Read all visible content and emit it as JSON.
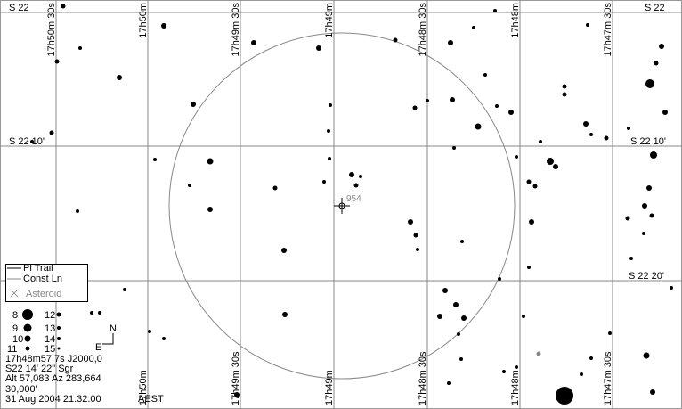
{
  "ra_top": [
    "17h50m 30s",
    "17h50m",
    "17h49m 30s",
    "17h49m",
    "17h48m 30s",
    "17h48m",
    "17h47m 30s"
  ],
  "ra_bottom": [
    "17h50m",
    "17h49m 30s",
    "17h49m",
    "17h48m 30s",
    "17h48m",
    "17h47m 30s"
  ],
  "dec_left": [
    "S 22",
    "S 22 10'"
  ],
  "dec_right": [
    "S 22",
    "S 22 10'",
    "S 22 20'"
  ],
  "target_label": "954",
  "legend": {
    "items": [
      "Pl Trail",
      "Const Ln",
      "Asteroid"
    ],
    "magnitudes": [
      8,
      12,
      9,
      13,
      10,
      14,
      11,
      15
    ]
  },
  "compass": {
    "north": "N",
    "east": "E"
  },
  "info": {
    "ra": "17h48m57,7s  J2000,0",
    "dec": "S22 14' 22\"    Sgr",
    "altaz": "Alt 57,083  Az 283,664",
    "fov": "30,000'",
    "datetime": "31 Aug 2004 21:32:00",
    "zone": "AEST"
  }
}
